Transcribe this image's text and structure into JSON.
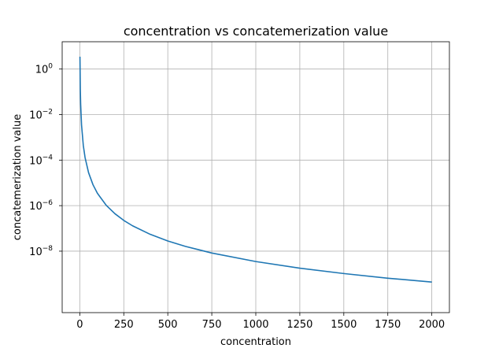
{
  "chart_data": {
    "type": "line",
    "title": "concentration vs concatemerization value",
    "xlabel": "concentration",
    "ylabel": "concatemerization value",
    "xlim": [
      -100,
      2100
    ],
    "ylim_log10": [
      -10.7,
      1.2
    ],
    "yscale": "log",
    "grid": true,
    "xticks": [
      {
        "value": 0,
        "label": "0"
      },
      {
        "value": 250,
        "label": "250"
      },
      {
        "value": 500,
        "label": "500"
      },
      {
        "value": 750,
        "label": "750"
      },
      {
        "value": 1000,
        "label": "1000"
      },
      {
        "value": 1250,
        "label": "1250"
      },
      {
        "value": 1500,
        "label": "1500"
      },
      {
        "value": 1750,
        "label": "1750"
      },
      {
        "value": 2000,
        "label": "2000"
      }
    ],
    "yticks": [
      {
        "exp": 0,
        "base": "10",
        "sup": "0"
      },
      {
        "exp": -2,
        "base": "10",
        "sup": "−2"
      },
      {
        "exp": -4,
        "base": "10",
        "sup": "−4"
      },
      {
        "exp": -6,
        "base": "10",
        "sup": "−6"
      },
      {
        "exp": -8,
        "base": "10",
        "sup": "−8"
      }
    ],
    "series": [
      {
        "color": "#1f77b4",
        "x": [
          1,
          3,
          5,
          10,
          20,
          30,
          50,
          75,
          100,
          150,
          200,
          250,
          300,
          400,
          500,
          600,
          750,
          1000,
          1250,
          1500,
          1750,
          2000
        ],
        "y": [
          3.5,
          0.13,
          0.028,
          0.0035,
          0.00044,
          0.00013,
          2.8e-05,
          8.3e-06,
          3.5e-06,
          1.04e-06,
          4.4e-07,
          2.24e-07,
          1.3e-07,
          5.5e-08,
          2.8e-08,
          1.62e-08,
          8.3e-09,
          3.5e-09,
          1.79e-09,
          1.04e-09,
          6.5e-10,
          4.4e-10
        ]
      }
    ]
  }
}
